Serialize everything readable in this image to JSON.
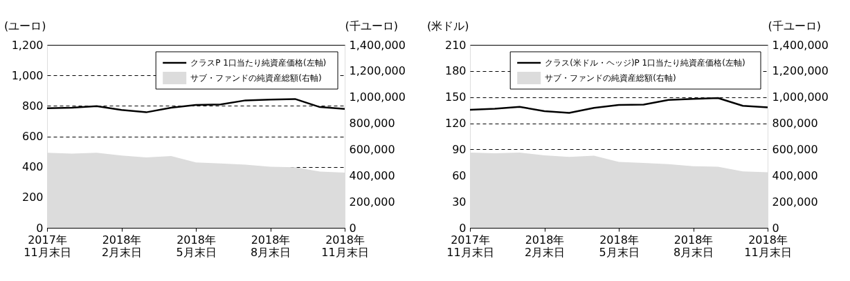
{
  "chart_data": [
    {
      "type": "line",
      "ylabel": "(ユーロ)",
      "y2label": "(千ユーロ)",
      "categories": [
        "2017年\n11月末日",
        null,
        null,
        "2018年\n2月末日",
        null,
        null,
        "2018年\n5月末日",
        null,
        null,
        "2018年\n8月末日",
        null,
        null,
        "2018年\n11月末日"
      ],
      "ylim": [
        0,
        1200
      ],
      "yticks": [
        0,
        200,
        400,
        600,
        800,
        {
          "value": 1000,
          "label": "1,000"
        },
        {
          "value": 1200,
          "label": "1,200"
        }
      ],
      "y2lim": [
        0,
        1400000
      ],
      "y2ticks": [
        0,
        {
          "value": 200000,
          "label": "200,000"
        },
        {
          "value": 400000,
          "label": "400,000"
        },
        {
          "value": 600000,
          "label": "600,000"
        },
        {
          "value": 800000,
          "label": "800,000"
        },
        {
          "value": 1000000,
          "label": "1,000,000"
        },
        {
          "value": 1200000,
          "label": "1,200,000"
        },
        {
          "value": 1400000,
          "label": "1,400,000"
        }
      ],
      "grid": "y",
      "legend": "top right",
      "series": [
        {
          "name": "クラスP 1口当たり純資産価格(左軸)",
          "color": "#000000",
          "values": [
            785,
            788,
            798,
            773,
            758,
            788,
            806,
            809,
            836,
            841,
            845,
            792,
            780
          ]
        },
        {
          "name": "サブ・ファンドの純資産総額(右軸)",
          "type": "area",
          "axis": "y2",
          "color": "#dcdcdc",
          "values": [
            575000,
            568000,
            575000,
            553000,
            539000,
            550000,
            500000,
            492000,
            483000,
            467000,
            463000,
            430000,
            423000
          ]
        }
      ]
    },
    {
      "type": "line",
      "ylabel": "(米ドル)",
      "y2label": "(千ユーロ)",
      "categories": [
        "2017年\n11月末日",
        null,
        null,
        "2018年\n2月末日",
        null,
        null,
        "2018年\n5月末日",
        null,
        null,
        "2018年\n8月末日",
        null,
        null,
        "2018年\n11月末日"
      ],
      "ylim": [
        0,
        210
      ],
      "yticks": [
        0,
        30,
        60,
        90,
        120,
        150,
        180,
        210
      ],
      "y2lim": [
        0,
        1400000
      ],
      "y2ticks": [
        0,
        {
          "value": 200000,
          "label": "200,000"
        },
        {
          "value": 400000,
          "label": "400,000"
        },
        {
          "value": 600000,
          "label": "600,000"
        },
        {
          "value": 800000,
          "label": "800,000"
        },
        {
          "value": 1000000,
          "label": "1,000,000"
        },
        {
          "value": 1200000,
          "label": "1,200,000"
        },
        {
          "value": 1400000,
          "label": "1,400,000"
        }
      ],
      "grid": "y",
      "legend": "top right",
      "series": [
        {
          "name": "クラス(米ドル・ヘッジ)P 1口当たり純資産価格(左軸)",
          "color": "#000000",
          "values": [
            135.6,
            136.7,
            138.8,
            134.0,
            131.9,
            137.7,
            141.0,
            141.5,
            146.8,
            147.9,
            149.0,
            140.1,
            138.3
          ]
        },
        {
          "name": "サブ・ファンドの純資産総額(右軸)",
          "type": "area",
          "axis": "y2",
          "color": "#dcdcdc",
          "values": [
            576000,
            571000,
            576000,
            555000,
            543000,
            552000,
            504000,
            496000,
            488000,
            472000,
            468000,
            432000,
            425000
          ]
        }
      ]
    }
  ]
}
